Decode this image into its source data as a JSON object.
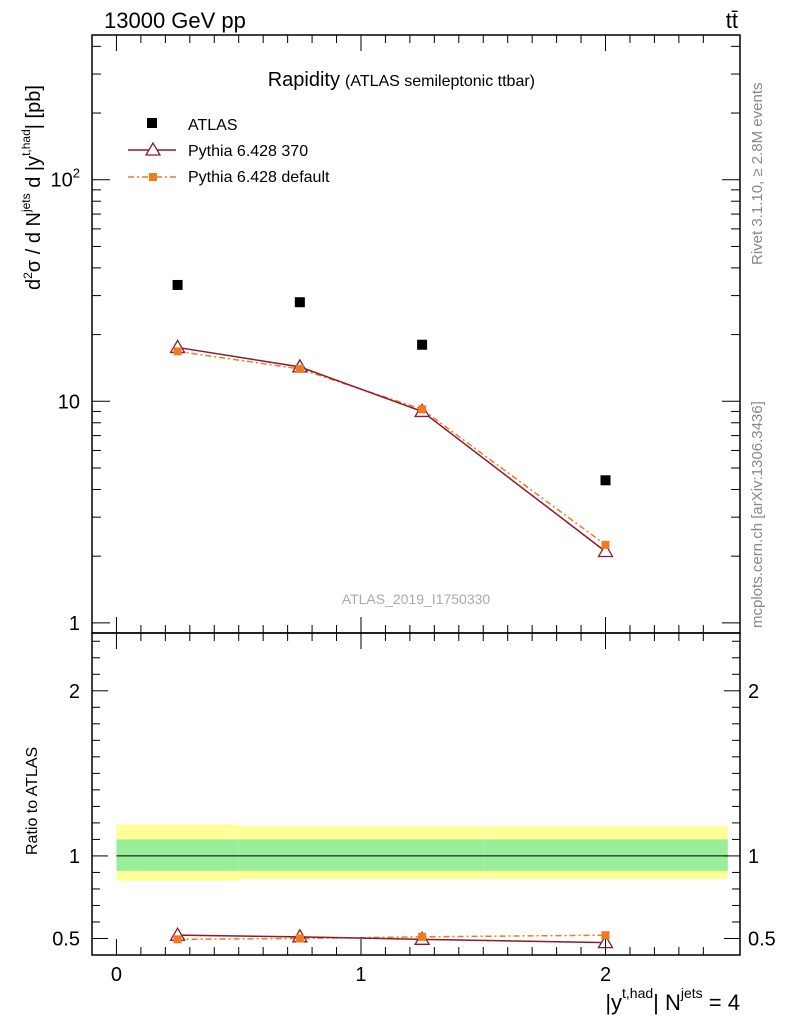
{
  "header": {
    "energy_label": "13000 GeV pp",
    "process_label": "tt̄"
  },
  "side_labels": {
    "rivet": "Rivet 3.1.10, ≥ 2.8M events",
    "mcplots": "mcplots.cern.ch [arXiv:1306.3436]"
  },
  "colors": {
    "data": "#000000",
    "mc1": "#8b1a2b",
    "mc2": "#f07a20",
    "band_inner": "#99ee99",
    "band_outer": "#ffff99"
  },
  "chart_data": [
    {
      "type": "scatter",
      "panel": "main",
      "title": "Rapidity",
      "subtitle": "(ATLAS semileptonic ttbar)",
      "analysis_label": "ATLAS_2019_I1750330",
      "yscale": "log",
      "xlim": [
        -0.1,
        2.55
      ],
      "ylim": [
        0.9,
        450
      ],
      "ylabel": "d²σ / d Nʲᵉᵗˢ d |yᵗ·ʰᵃᵈ| [pb]",
      "yticks": [
        {
          "value": 1,
          "label": "1"
        },
        {
          "value": 10,
          "label": "10"
        },
        {
          "value": 100,
          "label": "10²"
        }
      ],
      "x": [
        0.25,
        0.75,
        1.25,
        2.0
      ],
      "legend_position": "top-left",
      "series": [
        {
          "name": "ATLAS",
          "marker": "filled-square",
          "values": [
            33.5,
            28.0,
            18.0,
            4.4
          ]
        },
        {
          "name": "Pythia 6.428 370",
          "marker": "open-triangle",
          "line": "solid",
          "values": [
            17.5,
            14.3,
            9.0,
            2.1
          ]
        },
        {
          "name": "Pythia 6.428 default",
          "marker": "small-filled-square",
          "line": "dash-dot",
          "values": [
            16.8,
            14.0,
            9.2,
            2.25
          ]
        }
      ]
    },
    {
      "type": "scatter",
      "panel": "ratio",
      "ylabel": "Ratio to ATLAS",
      "xlabel": "|yᵗ·ʰᵃᵈ| Nʲᵉᵗˢ = 4",
      "xlim": [
        -0.1,
        2.55
      ],
      "ylim": [
        0.4,
        2.35
      ],
      "xticks": [
        {
          "value": 0,
          "label": "0"
        },
        {
          "value": 1,
          "label": "1"
        },
        {
          "value": 2,
          "label": "2"
        }
      ],
      "yticks": [
        {
          "value": 0.5,
          "label": "0.5"
        },
        {
          "value": 1,
          "label": "1"
        },
        {
          "value": 2,
          "label": "2"
        }
      ],
      "bands": [
        {
          "x_range": [
            0.0,
            0.5
          ],
          "inner": [
            0.91,
            1.1
          ],
          "outer": [
            0.85,
            1.19
          ]
        },
        {
          "x_range": [
            0.5,
            1.0
          ],
          "inner": [
            0.91,
            1.1
          ],
          "outer": [
            0.86,
            1.18
          ]
        },
        {
          "x_range": [
            1.0,
            1.5
          ],
          "inner": [
            0.91,
            1.1
          ],
          "outer": [
            0.86,
            1.18
          ]
        },
        {
          "x_range": [
            1.5,
            2.5
          ],
          "inner": [
            0.91,
            1.1
          ],
          "outer": [
            0.86,
            1.18
          ]
        }
      ],
      "x": [
        0.25,
        0.75,
        1.25,
        2.0
      ],
      "series": [
        {
          "name": "Pythia 6.428 370",
          "marker": "open-triangle",
          "line": "solid",
          "values": [
            0.52,
            0.51,
            0.495,
            0.475
          ]
        },
        {
          "name": "Pythia 6.428 default",
          "marker": "small-filled-square",
          "line": "dash-dot",
          "values": [
            0.495,
            0.5,
            0.51,
            0.52
          ]
        }
      ]
    }
  ]
}
